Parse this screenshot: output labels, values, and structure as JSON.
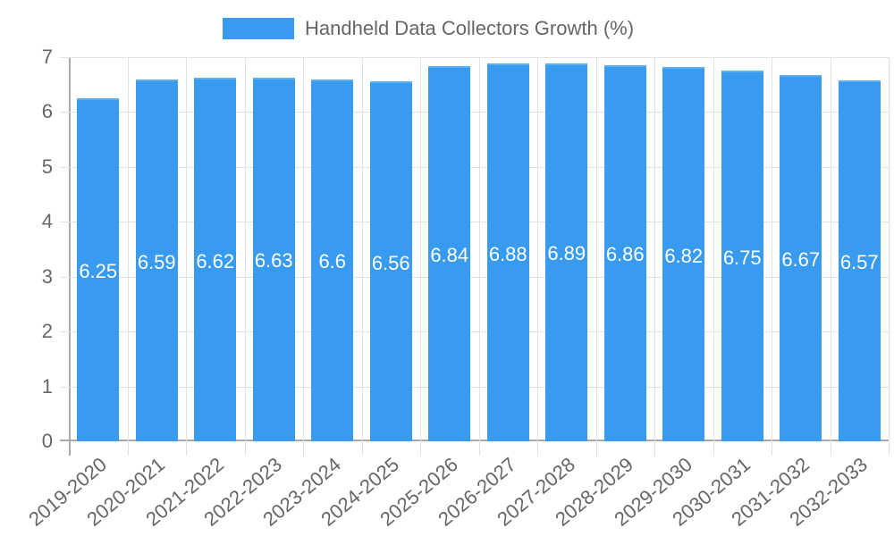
{
  "chart_data": {
    "type": "bar",
    "title": "",
    "legend": [
      {
        "label": "Handheld Data Collectors Growth (%)",
        "color": "#389bf0"
      }
    ],
    "legend_position": "top",
    "categories": [
      "2019-2020",
      "2020-2021",
      "2021-2022",
      "2022-2023",
      "2023-2024",
      "2024-2025",
      "2025-2026",
      "2026-2027",
      "2027-2028",
      "2028-2029",
      "2029-2030",
      "2030-2031",
      "2031-2032",
      "2032-2033"
    ],
    "series": [
      {
        "name": "Handheld Data Collectors Growth (%)",
        "values": [
          6.25,
          6.59,
          6.62,
          6.63,
          6.6,
          6.56,
          6.84,
          6.88,
          6.89,
          6.86,
          6.82,
          6.75,
          6.67,
          6.57
        ]
      }
    ],
    "data_labels": [
      "6.25",
      "6.59",
      "6.62",
      "6.63",
      "6.6",
      "6.56",
      "6.84",
      "6.88",
      "6.89",
      "6.86",
      "6.82",
      "6.75",
      "6.67",
      "6.57"
    ],
    "xlabel": "",
    "ylabel": "",
    "ylim": [
      0,
      7
    ],
    "yticks": [
      "0",
      "1",
      "2",
      "3",
      "4",
      "5",
      "6",
      "7"
    ],
    "grid": true,
    "bar_color": "#389bf0"
  },
  "legend": {
    "label": "Handheld Data Collectors Growth (%)"
  }
}
